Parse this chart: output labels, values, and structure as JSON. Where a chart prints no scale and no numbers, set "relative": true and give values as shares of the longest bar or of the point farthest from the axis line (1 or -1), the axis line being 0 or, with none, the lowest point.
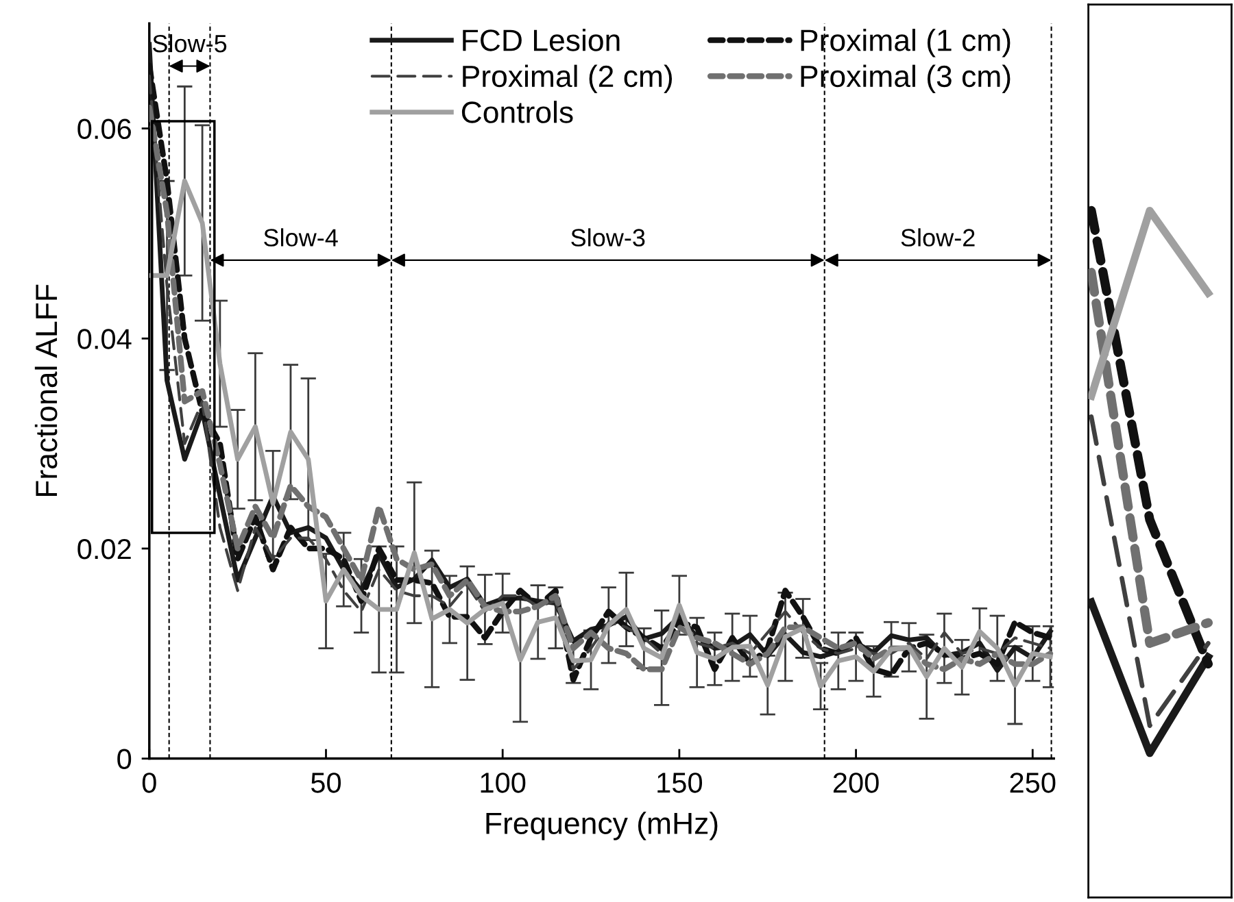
{
  "chart_data": [
    {
      "type": "line",
      "xlabel": "Frequency (mHz)",
      "ylabel": "Fractional ALFF",
      "x": [
        0,
        5,
        10,
        15,
        20,
        25,
        30,
        35,
        40,
        45,
        50,
        55,
        60,
        65,
        70,
        75,
        80,
        85,
        90,
        95,
        100,
        105,
        110,
        115,
        120,
        125,
        130,
        135,
        140,
        145,
        150,
        155,
        160,
        165,
        170,
        175,
        180,
        185,
        190,
        195,
        200,
        205,
        210,
        215,
        220,
        225,
        230,
        235,
        240,
        245,
        250,
        255
      ],
      "series": [
        {
          "name": "FCD Lesion",
          "color": "#1a1a1a",
          "line_style": "solid",
          "values": [
            0.068,
            0.036,
            0.0285,
            0.0331,
            0.025,
            0.017,
            0.021,
            0.025,
            0.0215,
            0.022,
            0.021,
            0.018,
            0.016,
            0.0195,
            0.0163,
            0.0171,
            0.0189,
            0.0163,
            0.0171,
            0.0146,
            0.0152,
            0.0153,
            0.015,
            0.0148,
            0.0112,
            0.0123,
            0.0127,
            0.0135,
            0.0114,
            0.0119,
            0.0135,
            0.0116,
            0.0105,
            0.0107,
            0.0118,
            0.0098,
            0.0118,
            0.0101,
            0.0097,
            0.0102,
            0.011,
            0.0101,
            0.0117,
            0.0113,
            0.0115,
            0.0098,
            0.0101,
            0.011,
            0.0084,
            0.0106,
            0.0096,
            0.0121
          ]
        },
        {
          "name": "Proximal (1 cm)",
          "color": "#111111",
          "line_style": "dashed",
          "values": [
            0.066,
            0.055,
            0.04,
            0.033,
            0.03,
            0.019,
            0.023,
            0.018,
            0.022,
            0.02,
            0.02,
            0.019,
            0.015,
            0.02,
            0.017,
            0.017,
            0.0167,
            0.0135,
            0.0135,
            0.0115,
            0.014,
            0.016,
            0.0145,
            0.016,
            0.0075,
            0.0115,
            0.014,
            0.0125,
            0.0115,
            0.0105,
            0.013,
            0.0125,
            0.0085,
            0.0115,
            0.009,
            0.0105,
            0.016,
            0.0135,
            0.0105,
            0.01,
            0.0115,
            0.0085,
            0.008,
            0.0105,
            0.011,
            0.01,
            0.0095,
            0.01,
            0.009,
            0.013,
            0.012,
            0.0115
          ]
        },
        {
          "name": "Proximal (2 cm)",
          "color": "#404040",
          "line_style": "longdash",
          "values": [
            0.065,
            0.045,
            0.03,
            0.034,
            0.022,
            0.016,
            0.022,
            0.019,
            0.021,
            0.021,
            0.019,
            0.016,
            0.014,
            0.018,
            0.016,
            0.0155,
            0.0155,
            0.0145,
            0.0165,
            0.014,
            0.0155,
            0.0155,
            0.0145,
            0.015,
            0.0085,
            0.0105,
            0.013,
            0.0125,
            0.0115,
            0.01,
            0.014,
            0.011,
            0.0105,
            0.011,
            0.01,
            0.012,
            0.014,
            0.012,
            0.0105,
            0.01,
            0.0105,
            0.01,
            0.01,
            0.011,
            0.0095,
            0.012,
            0.01,
            0.0105,
            0.01,
            0.0115,
            0.011,
            0.0105
          ]
        },
        {
          "name": "Proximal (3 cm)",
          "color": "#707070",
          "line_style": "dashed",
          "values": [
            0.062,
            0.052,
            0.034,
            0.035,
            0.028,
            0.02,
            0.024,
            0.021,
            0.026,
            0.024,
            0.023,
            0.02,
            0.017,
            0.024,
            0.019,
            0.018,
            0.0185,
            0.0155,
            0.017,
            0.0145,
            0.014,
            0.014,
            0.0145,
            0.0155,
            0.0105,
            0.012,
            0.0105,
            0.01,
            0.0085,
            0.0085,
            0.0125,
            0.0115,
            0.011,
            0.01,
            0.009,
            0.01,
            0.0125,
            0.0125,
            0.0115,
            0.0105,
            0.011,
            0.0095,
            0.0105,
            0.0105,
            0.009,
            0.0085,
            0.0095,
            0.009,
            0.01,
            0.009,
            0.009,
            0.01
          ]
        },
        {
          "name": "Controls",
          "color": "#a0a0a0",
          "line_style": "solid",
          "values": [
            0.046,
            0.046,
            0.055,
            0.051,
            0.0376,
            0.0285,
            0.0316,
            0.0243,
            0.0311,
            0.0285,
            0.015,
            0.018,
            0.0155,
            0.0142,
            0.0142,
            0.0196,
            0.0133,
            0.0142,
            0.0129,
            0.0142,
            0.0148,
            0.0094,
            0.013,
            0.0134,
            0.0093,
            0.0094,
            0.0127,
            0.0142,
            0.0105,
            0.0096,
            0.0146,
            0.0101,
            0.0095,
            0.0106,
            0.0107,
            0.007,
            0.0116,
            0.0124,
            0.0069,
            0.0093,
            0.0097,
            0.0083,
            0.0104,
            0.0106,
            0.0078,
            0.0105,
            0.0087,
            0.0121,
            0.0105,
            0.007,
            0.01,
            0.0097
          ],
          "errors": [
            null,
            0.009,
            0.009,
            0.0093,
            0.006,
            0.0047,
            0.007,
            0.005,
            0.0064,
            0.0077,
            0.0045,
            0.0035,
            0.0035,
            0.006,
            0.006,
            0.0067,
            0.0065,
            0.0032,
            0.0054,
            0.0033,
            0.0028,
            0.0059,
            0.0035,
            0.0029,
            0.0021,
            0.0028,
            0.0036,
            0.0035,
            0.0019,
            0.0045,
            0.0028,
            0.0033,
            0.0025,
            0.0032,
            0.0029,
            0.0028,
            0.0042,
            0.0028,
            0.0022,
            0.0027,
            0.0023,
            0.0024,
            0.0026,
            0.0023,
            0.004,
            0.0033,
            0.0026,
            0.0022,
            0.0031,
            0.0037,
            0.0026,
            0.0029
          ]
        }
      ],
      "xlim": [
        0,
        256
      ],
      "xticks": [
        0,
        50,
        100,
        150,
        200,
        250
      ],
      "ylim": [
        0,
        0.07
      ],
      "yticks": [
        0,
        0.02,
        0.04,
        0.06
      ],
      "ref_lines": [
        {
          "axis": "x",
          "value": 5.6,
          "line_style": "dashed"
        },
        {
          "axis": "x",
          "value": 17.2,
          "line_style": "dashed"
        },
        {
          "axis": "x",
          "value": 68.5,
          "line_style": "dashed"
        },
        {
          "axis": "x",
          "value": 191.1,
          "line_style": "dashed"
        },
        {
          "axis": "x",
          "value": 255.3,
          "line_style": "dashed"
        }
      ],
      "annotations": [
        "Slow-5",
        "Slow-4",
        "Slow-3",
        "Slow-2"
      ],
      "grid": false,
      "legend": "top",
      "marker": "none"
    },
    {
      "type": "line",
      "relative": true,
      "categories": [
        null,
        null,
        null
      ],
      "series": [
        {
          "color": "#1a1a1a",
          "line_style": "solid",
          "values": [
            0.43,
            0.21,
            0.35
          ]
        },
        {
          "color": "#111111",
          "line_style": "dashed",
          "values": [
            1.0,
            0.55,
            0.34
          ]
        },
        {
          "color": "#404040",
          "line_style": "longdash",
          "values": [
            0.7,
            0.25,
            0.37
          ]
        },
        {
          "color": "#707070",
          "line_style": "dashed",
          "values": [
            0.91,
            0.37,
            0.4
          ]
        },
        {
          "color": "#a0a0a0",
          "line_style": "solid",
          "values": [
            0.73,
            1.0,
            0.88
          ]
        }
      ],
      "grid": false,
      "legend": false,
      "marker": "none"
    }
  ]
}
